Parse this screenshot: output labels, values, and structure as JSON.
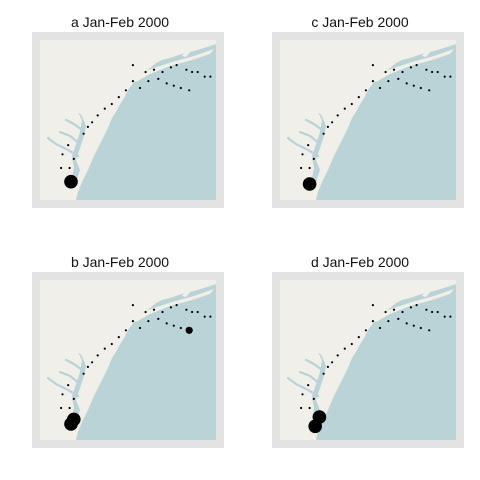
{
  "colors": {
    "frame": "#e3e3e3",
    "land": "#f1efe9",
    "water": "#b9d3d6",
    "marker": "#000000"
  },
  "panels": [
    {
      "id": "a",
      "title": "a Jan-Feb 2000",
      "stations": [
        {
          "lon": -70.4,
          "lat": 41.4,
          "size": "small"
        },
        {
          "lon": -69.5,
          "lat": 41.1,
          "size": "small"
        },
        {
          "lon": -68.9,
          "lat": 41.2,
          "size": "small"
        },
        {
          "lon": -68.3,
          "lat": 41.1,
          "size": "small"
        },
        {
          "lon": -67.7,
          "lat": 41.3,
          "size": "small"
        },
        {
          "lon": -67.3,
          "lat": 41.4,
          "size": "small"
        },
        {
          "lon": -66.6,
          "lat": 41.2,
          "size": "small"
        },
        {
          "lon": -66.2,
          "lat": 41.1,
          "size": "small"
        },
        {
          "lon": -65.8,
          "lat": 41.1,
          "size": "small"
        },
        {
          "lon": -65.3,
          "lat": 40.9,
          "size": "small"
        },
        {
          "lon": -64.9,
          "lat": 40.9,
          "size": "small"
        },
        {
          "lon": -70.9,
          "lat": 40.3,
          "size": "small"
        },
        {
          "lon": -70.4,
          "lat": 40.7,
          "size": "small"
        },
        {
          "lon": -69.9,
          "lat": 40.4,
          "size": "small"
        },
        {
          "lon": -69.3,
          "lat": 40.7,
          "size": "small"
        },
        {
          "lon": -68.6,
          "lat": 40.8,
          "size": "small"
        },
        {
          "lon": -68.0,
          "lat": 40.6,
          "size": "small"
        },
        {
          "lon": -67.5,
          "lat": 40.5,
          "size": "small"
        },
        {
          "lon": -67.0,
          "lat": 40.4,
          "size": "small"
        },
        {
          "lon": -66.4,
          "lat": 40.3,
          "size": "small"
        },
        {
          "lon": -71.4,
          "lat": 40.0,
          "size": "small"
        },
        {
          "lon": -72.9,
          "lat": 39.2,
          "size": "small"
        },
        {
          "lon": -72.4,
          "lat": 39.5,
          "size": "small"
        },
        {
          "lon": -71.9,
          "lat": 39.7,
          "size": "small"
        },
        {
          "lon": -73.3,
          "lat": 38.9,
          "size": "small"
        },
        {
          "lon": -73.6,
          "lat": 38.7,
          "size": "small"
        },
        {
          "lon": -73.9,
          "lat": 38.4,
          "size": "small"
        },
        {
          "lon": -75.0,
          "lat": 37.9,
          "size": "small"
        },
        {
          "lon": -75.4,
          "lat": 37.5,
          "size": "small"
        },
        {
          "lon": -74.6,
          "lat": 37.3,
          "size": "small"
        },
        {
          "lon": -75.5,
          "lat": 36.9,
          "size": "small"
        },
        {
          "lon": -74.9,
          "lat": 36.9,
          "size": "small"
        },
        {
          "lon": -74.8,
          "lat": 36.3,
          "size": "large"
        }
      ]
    },
    {
      "id": "c",
      "title": "c Jan-Feb 2000",
      "stations": [
        {
          "lon": -70.4,
          "lat": 41.4,
          "size": "small"
        },
        {
          "lon": -69.5,
          "lat": 41.1,
          "size": "small"
        },
        {
          "lon": -68.9,
          "lat": 41.2,
          "size": "small"
        },
        {
          "lon": -68.3,
          "lat": 41.1,
          "size": "small"
        },
        {
          "lon": -67.7,
          "lat": 41.3,
          "size": "small"
        },
        {
          "lon": -67.3,
          "lat": 41.4,
          "size": "small"
        },
        {
          "lon": -66.6,
          "lat": 41.2,
          "size": "small"
        },
        {
          "lon": -66.2,
          "lat": 41.1,
          "size": "small"
        },
        {
          "lon": -65.8,
          "lat": 41.1,
          "size": "small"
        },
        {
          "lon": -65.3,
          "lat": 40.9,
          "size": "small"
        },
        {
          "lon": -64.9,
          "lat": 40.9,
          "size": "small"
        },
        {
          "lon": -70.9,
          "lat": 40.3,
          "size": "small"
        },
        {
          "lon": -70.4,
          "lat": 40.7,
          "size": "small"
        },
        {
          "lon": -69.9,
          "lat": 40.4,
          "size": "small"
        },
        {
          "lon": -69.3,
          "lat": 40.7,
          "size": "small"
        },
        {
          "lon": -68.6,
          "lat": 40.8,
          "size": "small"
        },
        {
          "lon": -68.0,
          "lat": 40.6,
          "size": "small"
        },
        {
          "lon": -67.5,
          "lat": 40.5,
          "size": "small"
        },
        {
          "lon": -67.0,
          "lat": 40.4,
          "size": "small"
        },
        {
          "lon": -66.4,
          "lat": 40.3,
          "size": "small"
        },
        {
          "lon": -71.4,
          "lat": 40.0,
          "size": "small"
        },
        {
          "lon": -72.9,
          "lat": 39.2,
          "size": "small"
        },
        {
          "lon": -72.4,
          "lat": 39.5,
          "size": "small"
        },
        {
          "lon": -71.9,
          "lat": 39.7,
          "size": "small"
        },
        {
          "lon": -73.3,
          "lat": 38.9,
          "size": "small"
        },
        {
          "lon": -73.6,
          "lat": 38.7,
          "size": "small"
        },
        {
          "lon": -73.9,
          "lat": 38.4,
          "size": "small"
        },
        {
          "lon": -75.0,
          "lat": 37.9,
          "size": "small"
        },
        {
          "lon": -75.4,
          "lat": 37.5,
          "size": "small"
        },
        {
          "lon": -74.6,
          "lat": 37.3,
          "size": "small"
        },
        {
          "lon": -75.5,
          "lat": 36.9,
          "size": "small"
        },
        {
          "lon": -74.9,
          "lat": 36.9,
          "size": "small"
        },
        {
          "lon": -74.9,
          "lat": 36.2,
          "size": "large"
        }
      ]
    },
    {
      "id": "b",
      "title": "b Jan-Feb 2000",
      "stations": [
        {
          "lon": -70.4,
          "lat": 41.4,
          "size": "small"
        },
        {
          "lon": -69.5,
          "lat": 41.1,
          "size": "small"
        },
        {
          "lon": -68.9,
          "lat": 41.2,
          "size": "small"
        },
        {
          "lon": -68.3,
          "lat": 41.1,
          "size": "small"
        },
        {
          "lon": -67.7,
          "lat": 41.3,
          "size": "small"
        },
        {
          "lon": -67.3,
          "lat": 41.4,
          "size": "small"
        },
        {
          "lon": -66.6,
          "lat": 41.2,
          "size": "small"
        },
        {
          "lon": -66.2,
          "lat": 41.1,
          "size": "small"
        },
        {
          "lon": -65.8,
          "lat": 41.1,
          "size": "small"
        },
        {
          "lon": -65.3,
          "lat": 40.9,
          "size": "small"
        },
        {
          "lon": -64.9,
          "lat": 40.9,
          "size": "small"
        },
        {
          "lon": -70.9,
          "lat": 40.3,
          "size": "small"
        },
        {
          "lon": -70.4,
          "lat": 40.7,
          "size": "small"
        },
        {
          "lon": -69.9,
          "lat": 40.4,
          "size": "small"
        },
        {
          "lon": -69.3,
          "lat": 40.7,
          "size": "small"
        },
        {
          "lon": -68.6,
          "lat": 40.8,
          "size": "small"
        },
        {
          "lon": -68.0,
          "lat": 40.6,
          "size": "small"
        },
        {
          "lon": -67.5,
          "lat": 40.5,
          "size": "small"
        },
        {
          "lon": -67.0,
          "lat": 40.4,
          "size": "small"
        },
        {
          "lon": -71.4,
          "lat": 40.0,
          "size": "small"
        },
        {
          "lon": -72.9,
          "lat": 39.2,
          "size": "small"
        },
        {
          "lon": -72.4,
          "lat": 39.5,
          "size": "small"
        },
        {
          "lon": -71.9,
          "lat": 39.7,
          "size": "small"
        },
        {
          "lon": -73.3,
          "lat": 38.9,
          "size": "small"
        },
        {
          "lon": -73.6,
          "lat": 38.7,
          "size": "small"
        },
        {
          "lon": -73.9,
          "lat": 38.4,
          "size": "small"
        },
        {
          "lon": -75.0,
          "lat": 37.9,
          "size": "small"
        },
        {
          "lon": -75.4,
          "lat": 37.5,
          "size": "small"
        },
        {
          "lon": -74.6,
          "lat": 37.3,
          "size": "small"
        },
        {
          "lon": -75.5,
          "lat": 36.9,
          "size": "small"
        },
        {
          "lon": -74.9,
          "lat": 36.9,
          "size": "small"
        },
        {
          "lon": -66.4,
          "lat": 40.3,
          "size": "medium"
        },
        {
          "lon": -74.8,
          "lat": 36.2,
          "size": "large"
        },
        {
          "lon": -74.6,
          "lat": 36.4,
          "size": "large"
        }
      ]
    },
    {
      "id": "d",
      "title": "d Jan-Feb 2000",
      "stations": [
        {
          "lon": -70.4,
          "lat": 41.4,
          "size": "small"
        },
        {
          "lon": -69.5,
          "lat": 41.1,
          "size": "small"
        },
        {
          "lon": -68.9,
          "lat": 41.2,
          "size": "small"
        },
        {
          "lon": -68.3,
          "lat": 41.1,
          "size": "small"
        },
        {
          "lon": -67.7,
          "lat": 41.3,
          "size": "small"
        },
        {
          "lon": -67.3,
          "lat": 41.4,
          "size": "small"
        },
        {
          "lon": -66.6,
          "lat": 41.2,
          "size": "small"
        },
        {
          "lon": -66.2,
          "lat": 41.1,
          "size": "small"
        },
        {
          "lon": -65.8,
          "lat": 41.1,
          "size": "small"
        },
        {
          "lon": -65.3,
          "lat": 40.9,
          "size": "small"
        },
        {
          "lon": -64.9,
          "lat": 40.9,
          "size": "small"
        },
        {
          "lon": -70.9,
          "lat": 40.3,
          "size": "small"
        },
        {
          "lon": -70.4,
          "lat": 40.7,
          "size": "small"
        },
        {
          "lon": -69.9,
          "lat": 40.4,
          "size": "small"
        },
        {
          "lon": -69.3,
          "lat": 40.7,
          "size": "small"
        },
        {
          "lon": -68.6,
          "lat": 40.8,
          "size": "small"
        },
        {
          "lon": -68.0,
          "lat": 40.6,
          "size": "small"
        },
        {
          "lon": -67.5,
          "lat": 40.5,
          "size": "small"
        },
        {
          "lon": -67.0,
          "lat": 40.4,
          "size": "small"
        },
        {
          "lon": -66.4,
          "lat": 40.3,
          "size": "small"
        },
        {
          "lon": -71.4,
          "lat": 40.0,
          "size": "small"
        },
        {
          "lon": -72.9,
          "lat": 39.2,
          "size": "small"
        },
        {
          "lon": -72.4,
          "lat": 39.5,
          "size": "small"
        },
        {
          "lon": -71.9,
          "lat": 39.7,
          "size": "small"
        },
        {
          "lon": -73.3,
          "lat": 38.9,
          "size": "small"
        },
        {
          "lon": -73.6,
          "lat": 38.7,
          "size": "small"
        },
        {
          "lon": -73.9,
          "lat": 38.4,
          "size": "small"
        },
        {
          "lon": -75.0,
          "lat": 37.9,
          "size": "small"
        },
        {
          "lon": -75.4,
          "lat": 37.5,
          "size": "small"
        },
        {
          "lon": -74.6,
          "lat": 37.3,
          "size": "small"
        },
        {
          "lon": -75.5,
          "lat": 36.9,
          "size": "small"
        },
        {
          "lon": -74.9,
          "lat": 36.9,
          "size": "small"
        },
        {
          "lon": -74.2,
          "lat": 36.5,
          "size": "large"
        },
        {
          "lon": -74.5,
          "lat": 36.1,
          "size": "large"
        }
      ]
    }
  ]
}
